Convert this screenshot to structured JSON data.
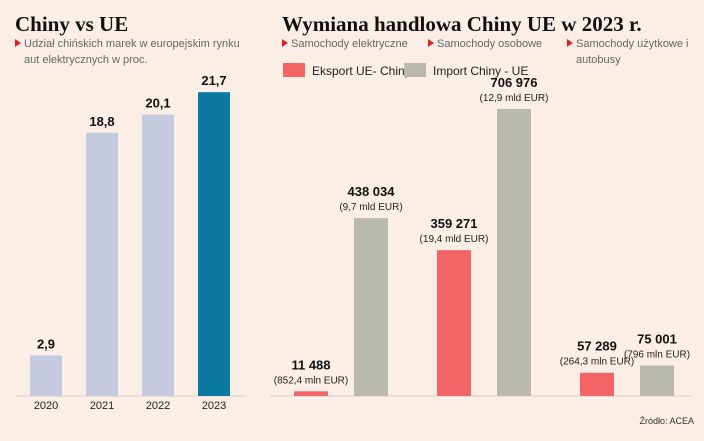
{
  "chart_data": [
    {
      "type": "bar",
      "title": "Chiny vs UE",
      "subtitle": "Udział chińskich marek w europejskim rynku aut elektrycznych w proc.",
      "categories": [
        "2020",
        "2021",
        "2022",
        "2023"
      ],
      "values": [
        2.9,
        18.8,
        20.1,
        21.7
      ],
      "value_labels": [
        "2,9",
        "18,8",
        "20,1",
        "21,7"
      ],
      "colors": [
        "#c5cadf",
        "#c5cadf",
        "#c5cadf",
        "#0b79a0"
      ]
    },
    {
      "type": "grouped_bar",
      "title": "Wymiana handlowa Chiny UE w 2023 r.",
      "categories": [
        "Samochody elektryczne",
        "Samochody osobowe",
        "Samochody użytkowe i autobusy"
      ],
      "series": [
        {
          "name": "Eksport UE- Chiny",
          "color": "#f26466",
          "values": [
            11488,
            359271,
            57289
          ],
          "value_labels": [
            "11 488",
            "359 271",
            "57 289"
          ],
          "value_notes": [
            "(852,4 mln EUR)",
            "(19,4 mld EUR)",
            "(264,3 mln EUR)"
          ]
        },
        {
          "name": "Import Chiny - UE",
          "color": "#b9b9af",
          "values": [
            438034,
            706976,
            75001
          ],
          "value_labels": [
            "438 034",
            "706 976",
            "75 001"
          ],
          "value_notes": [
            "(9,7 mld EUR)",
            "(12,9 mld EUR)",
            "(796 mln EUR)"
          ]
        }
      ],
      "source": "Źródło: ACEA"
    }
  ]
}
